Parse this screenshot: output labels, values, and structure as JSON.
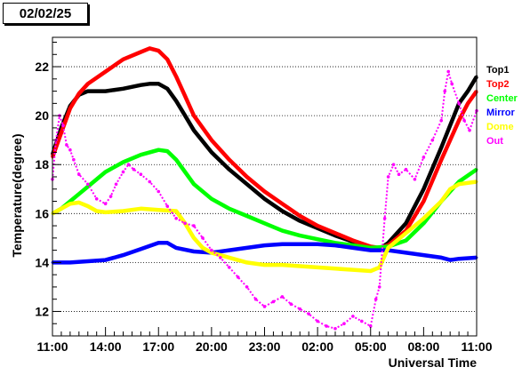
{
  "header": {
    "date_label": "02/02/25"
  },
  "chart_data": {
    "type": "scatter",
    "xlabel": "Universal Time",
    "ylabel": "Temperature(degree)",
    "xlim": [
      0,
      24
    ],
    "ylim": [
      11,
      23.2
    ],
    "x_ticks": [
      {
        "value": 0,
        "label": "11:00"
      },
      {
        "value": 3,
        "label": "14:00"
      },
      {
        "value": 6,
        "label": "17:00"
      },
      {
        "value": 9,
        "label": "20:00"
      },
      {
        "value": 12,
        "label": "23:00"
      },
      {
        "value": 15,
        "label": "02:00"
      },
      {
        "value": 18,
        "label": "05:00"
      },
      {
        "value": 21,
        "label": "08:00"
      },
      {
        "value": 24,
        "label": "11:00"
      }
    ],
    "y_ticks": [
      12,
      14,
      16,
      18,
      20,
      22
    ],
    "grid": "horizontal-dotted",
    "legend_position": "right",
    "series": [
      {
        "name": "Top1",
        "color": "#000000",
        "points": [
          [
            0,
            18.4
          ],
          [
            0.5,
            19.5
          ],
          [
            1,
            20.4
          ],
          [
            1.5,
            20.85
          ],
          [
            2,
            21.0
          ],
          [
            3,
            21.0
          ],
          [
            4,
            21.1
          ],
          [
            5,
            21.25
          ],
          [
            5.5,
            21.3
          ],
          [
            6,
            21.3
          ],
          [
            6.5,
            21.1
          ],
          [
            7,
            20.6
          ],
          [
            7.5,
            20.0
          ],
          [
            8,
            19.4
          ],
          [
            9,
            18.5
          ],
          [
            10,
            17.8
          ],
          [
            11,
            17.2
          ],
          [
            12,
            16.6
          ],
          [
            13,
            16.1
          ],
          [
            14,
            15.7
          ],
          [
            15,
            15.4
          ],
          [
            16,
            15.1
          ],
          [
            17,
            14.85
          ],
          [
            18,
            14.6
          ],
          [
            18.5,
            14.55
          ],
          [
            19,
            14.8
          ],
          [
            20,
            15.6
          ],
          [
            21,
            17.0
          ],
          [
            22,
            18.7
          ],
          [
            22.5,
            19.6
          ],
          [
            23,
            20.5
          ],
          [
            23.5,
            21.0
          ],
          [
            24,
            21.6
          ]
        ]
      },
      {
        "name": "Top2",
        "color": "#ff0000",
        "points": [
          [
            0,
            18.3
          ],
          [
            0.5,
            19.3
          ],
          [
            1,
            20.3
          ],
          [
            1.5,
            20.9
          ],
          [
            2,
            21.3
          ],
          [
            3,
            21.8
          ],
          [
            4,
            22.3
          ],
          [
            5,
            22.6
          ],
          [
            5.5,
            22.75
          ],
          [
            6,
            22.65
          ],
          [
            6.5,
            22.3
          ],
          [
            7,
            21.6
          ],
          [
            7.5,
            20.8
          ],
          [
            8,
            20.0
          ],
          [
            9,
            19.0
          ],
          [
            10,
            18.2
          ],
          [
            11,
            17.5
          ],
          [
            12,
            16.9
          ],
          [
            13,
            16.4
          ],
          [
            14,
            15.9
          ],
          [
            15,
            15.5
          ],
          [
            16,
            15.2
          ],
          [
            17,
            14.9
          ],
          [
            18,
            14.65
          ],
          [
            18.5,
            14.6
          ],
          [
            19,
            14.7
          ],
          [
            20,
            15.3
          ],
          [
            21,
            16.5
          ],
          [
            22,
            18.2
          ],
          [
            22.5,
            19.0
          ],
          [
            23,
            19.8
          ],
          [
            23.5,
            20.5
          ],
          [
            24,
            21.0
          ]
        ]
      },
      {
        "name": "Center",
        "color": "#00ff00",
        "points": [
          [
            0,
            16.0
          ],
          [
            0.5,
            16.2
          ],
          [
            1,
            16.5
          ],
          [
            1.5,
            16.8
          ],
          [
            2,
            17.1
          ],
          [
            3,
            17.7
          ],
          [
            4,
            18.1
          ],
          [
            5,
            18.4
          ],
          [
            6,
            18.6
          ],
          [
            6.5,
            18.55
          ],
          [
            7,
            18.2
          ],
          [
            7.5,
            17.7
          ],
          [
            8,
            17.2
          ],
          [
            9,
            16.6
          ],
          [
            10,
            16.2
          ],
          [
            11,
            15.9
          ],
          [
            12,
            15.6
          ],
          [
            13,
            15.3
          ],
          [
            14,
            15.1
          ],
          [
            15,
            14.95
          ],
          [
            16,
            14.8
          ],
          [
            17,
            14.7
          ],
          [
            18,
            14.6
          ],
          [
            19,
            14.65
          ],
          [
            20,
            14.9
          ],
          [
            21,
            15.6
          ],
          [
            22,
            16.5
          ],
          [
            22.5,
            16.9
          ],
          [
            23,
            17.3
          ],
          [
            24,
            17.8
          ]
        ]
      },
      {
        "name": "Mirror",
        "color": "#0000ff",
        "points": [
          [
            0,
            14.0
          ],
          [
            1,
            14.0
          ],
          [
            2,
            14.05
          ],
          [
            3,
            14.1
          ],
          [
            4,
            14.3
          ],
          [
            5,
            14.55
          ],
          [
            6,
            14.8
          ],
          [
            6.5,
            14.8
          ],
          [
            7,
            14.6
          ],
          [
            8,
            14.45
          ],
          [
            9,
            14.4
          ],
          [
            10,
            14.5
          ],
          [
            11,
            14.6
          ],
          [
            12,
            14.7
          ],
          [
            13,
            14.75
          ],
          [
            14,
            14.75
          ],
          [
            15,
            14.75
          ],
          [
            16,
            14.7
          ],
          [
            17,
            14.6
          ],
          [
            18,
            14.5
          ],
          [
            19,
            14.5
          ],
          [
            20,
            14.4
          ],
          [
            21,
            14.3
          ],
          [
            22,
            14.2
          ],
          [
            22.5,
            14.1
          ],
          [
            23,
            14.15
          ],
          [
            24,
            14.2
          ]
        ]
      },
      {
        "name": "Dome",
        "color": "#ffff00",
        "points": [
          [
            0,
            16.0
          ],
          [
            0.5,
            16.2
          ],
          [
            1,
            16.4
          ],
          [
            1.5,
            16.45
          ],
          [
            2,
            16.3
          ],
          [
            2.5,
            16.1
          ],
          [
            3,
            16.05
          ],
          [
            4,
            16.1
          ],
          [
            5,
            16.2
          ],
          [
            6,
            16.15
          ],
          [
            7,
            16.1
          ],
          [
            7.5,
            15.6
          ],
          [
            8,
            15.0
          ],
          [
            8.5,
            14.6
          ],
          [
            9,
            14.4
          ],
          [
            10,
            14.2
          ],
          [
            11,
            14.0
          ],
          [
            12,
            13.9
          ],
          [
            13,
            13.9
          ],
          [
            14,
            13.85
          ],
          [
            15,
            13.8
          ],
          [
            16,
            13.75
          ],
          [
            17,
            13.7
          ],
          [
            18,
            13.65
          ],
          [
            18.5,
            13.8
          ],
          [
            19,
            14.6
          ],
          [
            20,
            15.2
          ],
          [
            21,
            15.8
          ],
          [
            22,
            16.5
          ],
          [
            22.5,
            17.0
          ],
          [
            23,
            17.2
          ],
          [
            24,
            17.3
          ]
        ]
      },
      {
        "name": "Out",
        "color": "#ff00ff",
        "points": [
          [
            0,
            17.4
          ],
          [
            0.2,
            19.0
          ],
          [
            0.4,
            20.0
          ],
          [
            0.6,
            19.6
          ],
          [
            0.8,
            18.8
          ],
          [
            1.0,
            18.6
          ],
          [
            1.2,
            18.2
          ],
          [
            1.5,
            17.6
          ],
          [
            2.0,
            17.2
          ],
          [
            2.5,
            16.6
          ],
          [
            3.0,
            16.4
          ],
          [
            3.3,
            16.7
          ],
          [
            3.6,
            17.2
          ],
          [
            4.0,
            17.7
          ],
          [
            4.3,
            18.0
          ],
          [
            4.6,
            17.8
          ],
          [
            5.0,
            17.6
          ],
          [
            5.5,
            17.3
          ],
          [
            6.0,
            16.9
          ],
          [
            6.5,
            16.3
          ],
          [
            7.0,
            15.8
          ],
          [
            7.5,
            15.6
          ],
          [
            8.0,
            15.5
          ],
          [
            8.5,
            15.0
          ],
          [
            9.0,
            14.5
          ],
          [
            9.5,
            14.2
          ],
          [
            10.0,
            13.8
          ],
          [
            10.5,
            13.4
          ],
          [
            11.0,
            13.0
          ],
          [
            11.5,
            12.5
          ],
          [
            12.0,
            12.2
          ],
          [
            12.5,
            12.4
          ],
          [
            13.0,
            12.6
          ],
          [
            13.5,
            12.3
          ],
          [
            14.0,
            12.1
          ],
          [
            14.5,
            11.9
          ],
          [
            15.0,
            11.6
          ],
          [
            15.5,
            11.4
          ],
          [
            16.0,
            11.3
          ],
          [
            16.5,
            11.5
          ],
          [
            17.0,
            11.8
          ],
          [
            17.5,
            11.6
          ],
          [
            18.0,
            11.4
          ],
          [
            18.3,
            12.5
          ],
          [
            18.5,
            13.0
          ],
          [
            18.8,
            15.8
          ],
          [
            19.0,
            17.5
          ],
          [
            19.3,
            18.0
          ],
          [
            19.6,
            17.6
          ],
          [
            20.0,
            17.8
          ],
          [
            20.5,
            17.4
          ],
          [
            21.0,
            18.3
          ],
          [
            21.5,
            19.0
          ],
          [
            22.0,
            19.8
          ],
          [
            22.2,
            21.0
          ],
          [
            22.4,
            21.8
          ],
          [
            22.6,
            21.3
          ],
          [
            23.0,
            20.5
          ],
          [
            23.3,
            19.8
          ],
          [
            23.6,
            19.4
          ],
          [
            24.0,
            20.2
          ]
        ]
      }
    ]
  }
}
